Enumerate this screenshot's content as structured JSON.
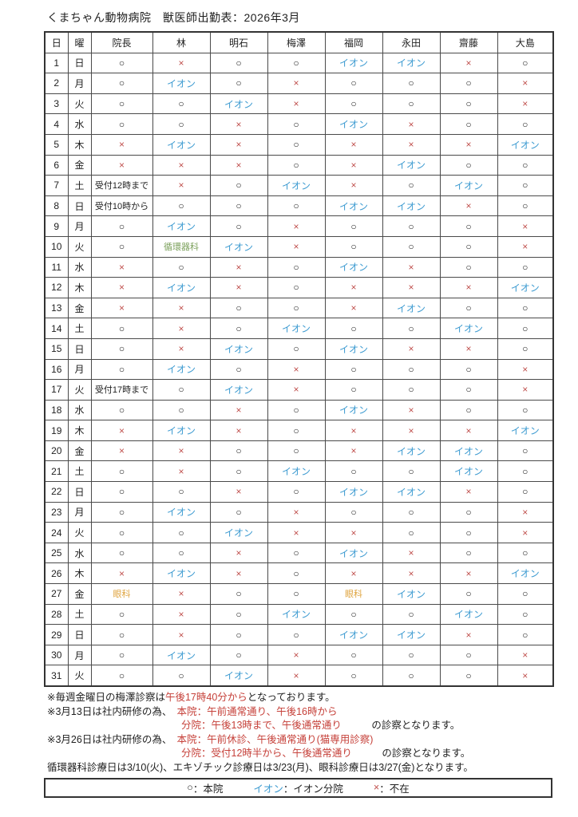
{
  "title": "くまちゃん動物病院　獣医師出勤表：2026年3月",
  "table": {
    "columns": [
      "日",
      "曜",
      "院長",
      "林",
      "明石",
      "梅澤",
      "福岡",
      "永田",
      "齋藤",
      "大島"
    ],
    "symbols": {
      "O": {
        "text": "○",
        "color": "#222222",
        "meaning": "main-hospital"
      },
      "X": {
        "text": "×",
        "color": "#C0504D",
        "meaning": "absent"
      },
      "I": {
        "text": "イオン",
        "color": "#3D9BD1",
        "meaning": "ion-branch"
      }
    },
    "special_colors": {
      "reception": "#222222",
      "cardiology": "#7BA05B",
      "ophthalmology": "#DFA43F"
    },
    "rows": [
      {
        "day": "1",
        "weekday": "日",
        "cells": [
          "O",
          "X",
          "O",
          "O",
          "I",
          "I",
          "X",
          "O"
        ]
      },
      {
        "day": "2",
        "weekday": "月",
        "cells": [
          "O",
          "I",
          "O",
          "X",
          "O",
          "O",
          "O",
          "X"
        ]
      },
      {
        "day": "3",
        "weekday": "火",
        "cells": [
          "O",
          "O",
          "I",
          "X",
          "O",
          "O",
          "O",
          "X"
        ]
      },
      {
        "day": "4",
        "weekday": "水",
        "cells": [
          "O",
          "O",
          "X",
          "O",
          "I",
          "X",
          "O",
          "O"
        ]
      },
      {
        "day": "5",
        "weekday": "木",
        "cells": [
          "X",
          "I",
          "X",
          "O",
          "X",
          "X",
          "X",
          "I"
        ]
      },
      {
        "day": "6",
        "weekday": "金",
        "cells": [
          "X",
          "X",
          "X",
          "O",
          "X",
          "I",
          "O",
          "O"
        ]
      },
      {
        "day": "7",
        "weekday": "土",
        "cells": [
          {
            "text": "受付12時まで",
            "type": "reception"
          },
          "X",
          "O",
          "I",
          "X",
          "O",
          "I",
          "O"
        ]
      },
      {
        "day": "8",
        "weekday": "日",
        "cells": [
          {
            "text": "受付10時から",
            "type": "reception"
          },
          "O",
          "O",
          "O",
          "I",
          "I",
          "X",
          "O"
        ]
      },
      {
        "day": "9",
        "weekday": "月",
        "cells": [
          "O",
          "I",
          "O",
          "X",
          "O",
          "O",
          "O",
          "X"
        ]
      },
      {
        "day": "10",
        "weekday": "火",
        "cells": [
          "O",
          {
            "text": "循環器科",
            "type": "cardiology"
          },
          "I",
          "X",
          "O",
          "O",
          "O",
          "X"
        ]
      },
      {
        "day": "11",
        "weekday": "水",
        "cells": [
          "X",
          "O",
          "X",
          "O",
          "I",
          "X",
          "O",
          "O"
        ]
      },
      {
        "day": "12",
        "weekday": "木",
        "cells": [
          "X",
          "I",
          "X",
          "O",
          "X",
          "X",
          "X",
          "I"
        ]
      },
      {
        "day": "13",
        "weekday": "金",
        "cells": [
          "X",
          "X",
          "O",
          "O",
          "X",
          "I",
          "O",
          "O"
        ]
      },
      {
        "day": "14",
        "weekday": "土",
        "cells": [
          "O",
          "X",
          "O",
          "I",
          "O",
          "O",
          "I",
          "O"
        ]
      },
      {
        "day": "15",
        "weekday": "日",
        "cells": [
          "O",
          "X",
          "I",
          "O",
          "I",
          "X",
          "X",
          "O"
        ]
      },
      {
        "day": "16",
        "weekday": "月",
        "cells": [
          "O",
          "I",
          "O",
          "X",
          "O",
          "O",
          "O",
          "X"
        ]
      },
      {
        "day": "17",
        "weekday": "火",
        "cells": [
          {
            "text": "受付17時まで",
            "type": "reception"
          },
          "O",
          "I",
          "X",
          "O",
          "O",
          "O",
          "X"
        ]
      },
      {
        "day": "18",
        "weekday": "水",
        "cells": [
          "O",
          "O",
          "X",
          "O",
          "I",
          "X",
          "O",
          "O"
        ]
      },
      {
        "day": "19",
        "weekday": "木",
        "cells": [
          "X",
          "I",
          "X",
          "O",
          "X",
          "X",
          "X",
          "I"
        ]
      },
      {
        "day": "20",
        "weekday": "金",
        "cells": [
          "X",
          "X",
          "O",
          "O",
          "X",
          "I",
          "I",
          "O"
        ]
      },
      {
        "day": "21",
        "weekday": "土",
        "cells": [
          "O",
          "X",
          "O",
          "I",
          "O",
          "O",
          "I",
          "O"
        ]
      },
      {
        "day": "22",
        "weekday": "日",
        "cells": [
          "O",
          "O",
          "X",
          "O",
          "I",
          "I",
          "X",
          "O"
        ]
      },
      {
        "day": "23",
        "weekday": "月",
        "cells": [
          "O",
          "I",
          "O",
          "X",
          "O",
          "O",
          "O",
          "X"
        ]
      },
      {
        "day": "24",
        "weekday": "火",
        "cells": [
          "O",
          "O",
          "I",
          "X",
          "X",
          "O",
          "O",
          "X"
        ]
      },
      {
        "day": "25",
        "weekday": "水",
        "cells": [
          "O",
          "O",
          "X",
          "O",
          "I",
          "X",
          "O",
          "O"
        ]
      },
      {
        "day": "26",
        "weekday": "木",
        "cells": [
          "X",
          "I",
          "X",
          "O",
          "X",
          "X",
          "X",
          "I"
        ]
      },
      {
        "day": "27",
        "weekday": "金",
        "cells": [
          {
            "text": "眼科",
            "type": "ophthalmology"
          },
          "X",
          "O",
          "O",
          {
            "text": "眼科",
            "type": "ophthalmology"
          },
          "I",
          "O",
          "O"
        ]
      },
      {
        "day": "28",
        "weekday": "土",
        "cells": [
          "O",
          "X",
          "O",
          "I",
          "O",
          "O",
          "I",
          "O"
        ]
      },
      {
        "day": "29",
        "weekday": "日",
        "cells": [
          "O",
          "X",
          "O",
          "O",
          "I",
          "I",
          "X",
          "O"
        ]
      },
      {
        "day": "30",
        "weekday": "月",
        "cells": [
          "O",
          "I",
          "O",
          "X",
          "O",
          "O",
          "O",
          "X"
        ]
      },
      {
        "day": "31",
        "weekday": "火",
        "cells": [
          "O",
          "O",
          "I",
          "X",
          "O",
          "O",
          "O",
          "X"
        ]
      }
    ]
  },
  "note_colors": {
    "k": "#1f1f1f",
    "r": "#C6413A"
  },
  "notes": [
    {
      "indent": false,
      "parts": [
        {
          "t": "※毎週金曜日の梅澤診察は",
          "c": "k"
        },
        {
          "t": "午後17時40分から",
          "c": "r"
        },
        {
          "t": "となっております。",
          "c": "k"
        }
      ]
    },
    {
      "indent": false,
      "parts": [
        {
          "t": "※3月13日は社内研修の為、　",
          "c": "k"
        },
        {
          "t": "本院：午前通常通り、午後16時から",
          "c": "r"
        }
      ]
    },
    {
      "indent": true,
      "parts": [
        {
          "t": "分院：午後13時まで、午後通常通り",
          "c": "r"
        },
        {
          "t": "　　　の診察となります。",
          "c": "k"
        }
      ]
    },
    {
      "indent": false,
      "parts": [
        {
          "t": "※3月26日は社内研修の為、　",
          "c": "k"
        },
        {
          "t": "本院：午前休診、午後通常通り(猫専用診察)",
          "c": "r"
        }
      ]
    },
    {
      "indent": true,
      "parts": [
        {
          "t": "分院：受付12時半から、午後通常通り",
          "c": "r"
        },
        {
          "t": "　　　の診察となります。",
          "c": "k"
        }
      ]
    },
    {
      "indent": false,
      "parts": [
        {
          "t": "循環器科診療日は3/10(火)、エキゾチック診療日は3/23(月)、眼科診療日は3/27(金)となります。",
          "c": "k"
        }
      ]
    }
  ],
  "legend": {
    "items": [
      {
        "symbol": "○",
        "symbol_color": "#222222",
        "label": "：本院"
      },
      {
        "symbol": "イオン",
        "symbol_color": "#3D9BD1",
        "label": "：イオン分院"
      },
      {
        "symbol": "×",
        "symbol_color": "#C0504D",
        "label": "：不在"
      }
    ]
  }
}
